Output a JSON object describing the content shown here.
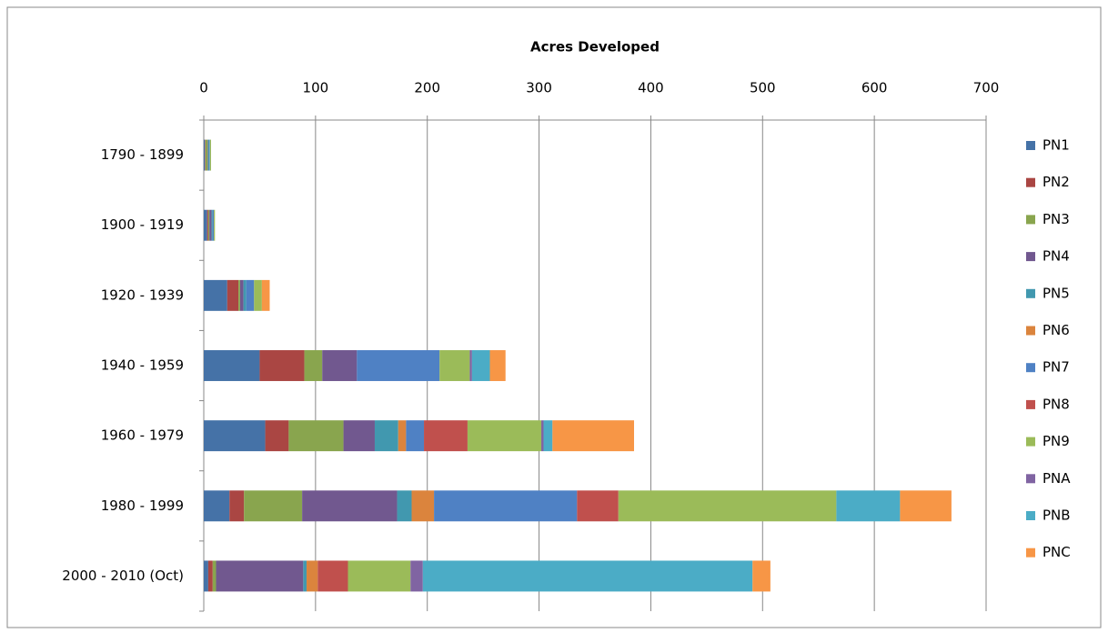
{
  "chart_data": {
    "type": "stacked-bar-horizontal",
    "title": "Acres Developed",
    "categories": [
      "1790 - 1899",
      "1900 - 1919",
      "1920 - 1939",
      "1940 - 1959",
      "1960 - 1979",
      "1980 - 1999",
      "2000 - 2010 (Oct)"
    ],
    "xlim": [
      0,
      700
    ],
    "xticks": [
      0,
      100,
      200,
      300,
      400,
      500,
      600,
      700
    ],
    "grid": true,
    "legend": "right",
    "series": [
      {
        "name": "PN1",
        "color": "#4572A7",
        "values": [
          1,
          3,
          21,
          50,
          55,
          23,
          4
        ]
      },
      {
        "name": "PN2",
        "color": "#AA4643",
        "values": [
          0.5,
          1,
          10,
          40,
          21,
          13,
          4
        ]
      },
      {
        "name": "PN3",
        "color": "#89A54E",
        "values": [
          2,
          1,
          1.5,
          16,
          49,
          52,
          3
        ]
      },
      {
        "name": "PN4",
        "color": "#71588F",
        "values": [
          0.5,
          2,
          3,
          31,
          28,
          85,
          78
        ]
      },
      {
        "name": "PN5",
        "color": "#4198AF",
        "values": [
          1,
          1,
          2.5,
          0,
          21,
          13,
          3
        ]
      },
      {
        "name": "PN6",
        "color": "#DB843D",
        "values": [
          0,
          0,
          0,
          0,
          7,
          20,
          10
        ]
      },
      {
        "name": "PN7",
        "color": "#4F81C4",
        "values": [
          0.5,
          1,
          7,
          74,
          16,
          128,
          0
        ]
      },
      {
        "name": "PN8",
        "color": "#C0504D",
        "values": [
          0,
          0,
          0,
          0,
          39,
          37,
          27
        ]
      },
      {
        "name": "PN9",
        "color": "#9BBB59",
        "values": [
          1,
          1,
          7,
          27,
          66,
          195,
          56
        ]
      },
      {
        "name": "PNA",
        "color": "#8064A2",
        "values": [
          0,
          0,
          0,
          2,
          2,
          0,
          11
        ]
      },
      {
        "name": "PNB",
        "color": "#4BACC6",
        "values": [
          0,
          0,
          0,
          16,
          8,
          57,
          295
        ]
      },
      {
        "name": "PNC",
        "color": "#F79646",
        "values": [
          0,
          0,
          7,
          14,
          73,
          46,
          16
        ]
      }
    ]
  }
}
